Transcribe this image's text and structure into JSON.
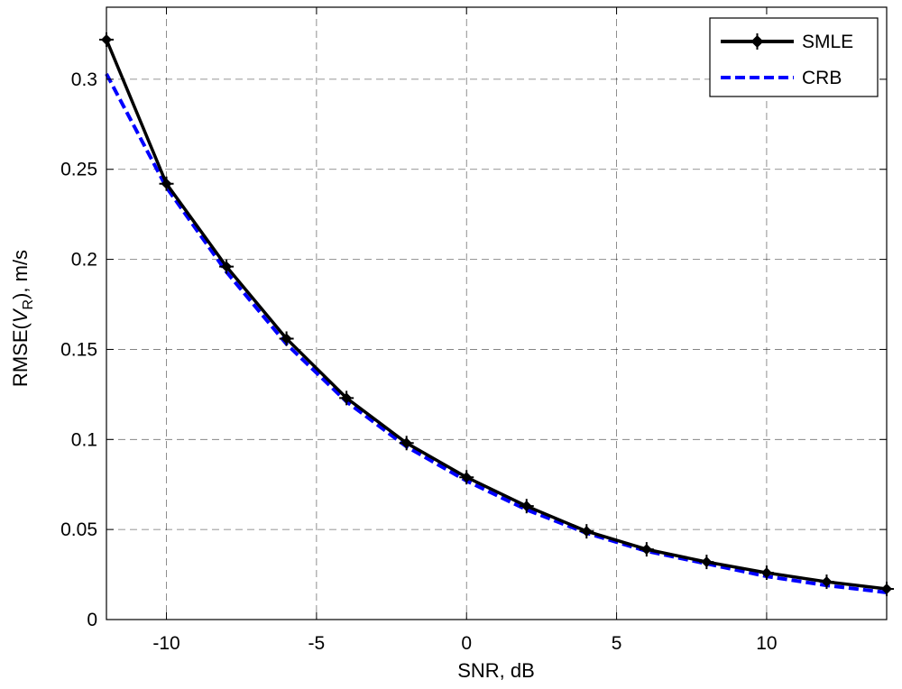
{
  "chart_data": {
    "type": "line",
    "xlabel": "SNR, dB",
    "ylabel_parts": {
      "prefix": "RMSE(",
      "var": "V",
      "sub": "R",
      "suffix": "), m/s"
    },
    "xlim": [
      -12,
      14
    ],
    "ylim": [
      0,
      0.34
    ],
    "xticks": [
      -10,
      -5,
      0,
      5,
      10
    ],
    "xtick_labels": [
      "-10",
      "-5",
      "0",
      "5",
      "10"
    ],
    "yticks": [
      0,
      0.05,
      0.1,
      0.15,
      0.2,
      0.25,
      0.3
    ],
    "ytick_labels": [
      "0",
      "0.05",
      "0.1",
      "0.15",
      "0.2",
      "0.25",
      "0.3"
    ],
    "grid": true,
    "legend_position": "top-right",
    "x": [
      -12,
      -10,
      -8,
      -6,
      -4,
      -2,
      0,
      2,
      4,
      6,
      8,
      10,
      12,
      14
    ],
    "series": [
      {
        "name": "SMLE",
        "color": "#000000",
        "style": "solid",
        "marker": "plus-diamond",
        "values": [
          0.322,
          0.242,
          0.196,
          0.156,
          0.123,
          0.098,
          0.079,
          0.063,
          0.049,
          0.039,
          0.032,
          0.026,
          0.021,
          0.017
        ]
      },
      {
        "name": "CRB",
        "color": "#0000ff",
        "style": "dashed",
        "marker": "none",
        "values": [
          0.303,
          0.24,
          0.193,
          0.153,
          0.121,
          0.096,
          0.077,
          0.061,
          0.048,
          0.038,
          0.031,
          0.024,
          0.019,
          0.015
        ]
      }
    ]
  }
}
